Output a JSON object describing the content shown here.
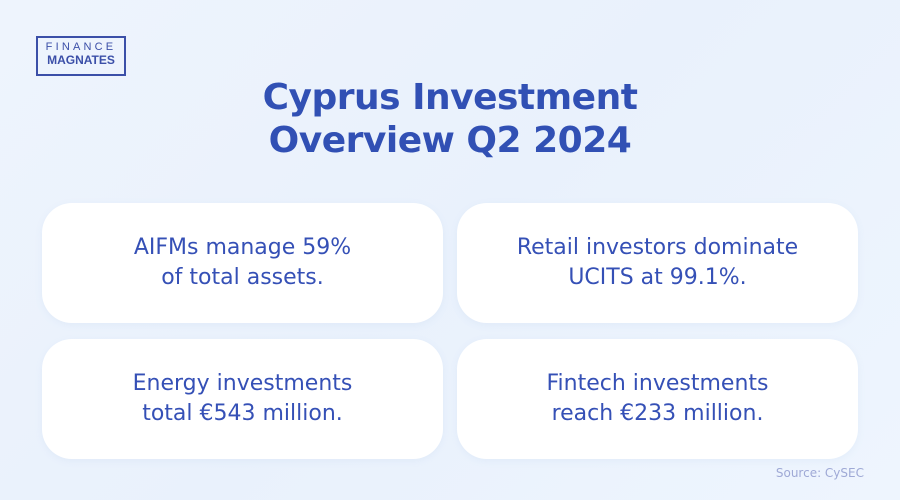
{
  "logo": {
    "line1": "FINANCE",
    "line2": "MAGNATES"
  },
  "title": {
    "line1": "Cyprus Investment",
    "line2": "Overview Q2 2024"
  },
  "cards": [
    {
      "line1": "AIFMs manage 59%",
      "line2": "of total assets."
    },
    {
      "line1": "Retail investors dominate",
      "line2": "UCITS at 99.1%."
    },
    {
      "line1": "Energy investments",
      "line2": "total €543 million."
    },
    {
      "line1": "Fintech investments",
      "line2": "reach €233 million."
    }
  ],
  "source": "Source: CySEC",
  "colors": {
    "accent": "#3150b4",
    "background": "#eef4fd",
    "card": "#ffffff"
  }
}
